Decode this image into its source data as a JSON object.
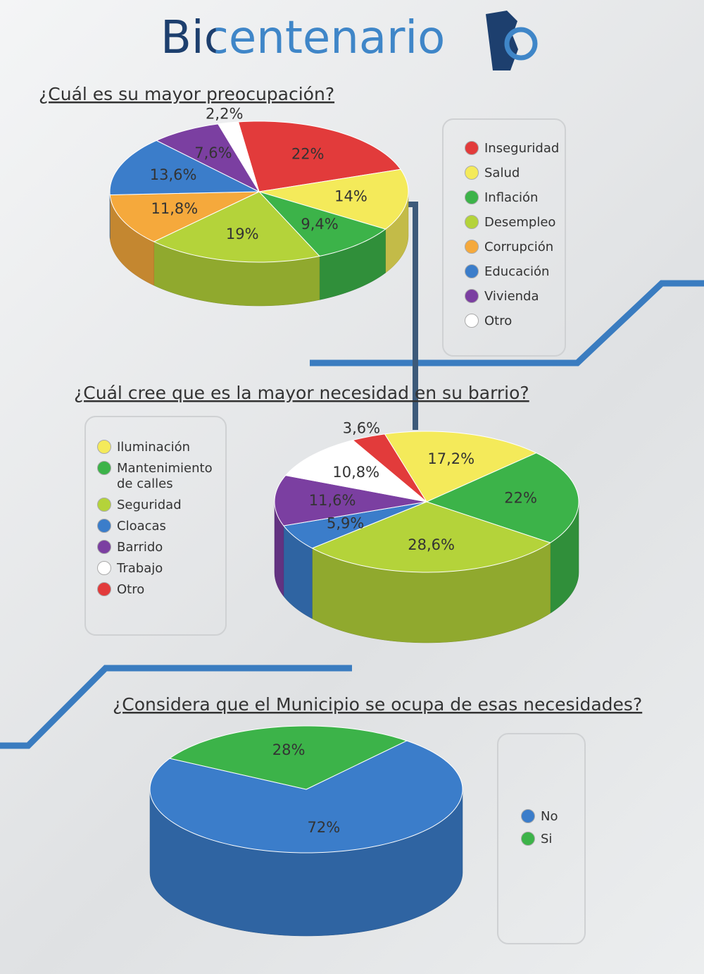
{
  "title": "Bicentenario",
  "chart_data": [
    {
      "type": "pie",
      "title": "¿Cuál es su mayor preocupación?",
      "categories": [
        "Inseguridad",
        "Salud",
        "Inflación",
        "Desempleo",
        "Corrupción",
        "Educación",
        "Vivienda",
        "Otro"
      ],
      "values": [
        22,
        14,
        9.4,
        19,
        11.8,
        13.6,
        7.6,
        2.2
      ],
      "value_labels": [
        "22%",
        "14%",
        "9,4%",
        "19%",
        "11,8%",
        "13,6%",
        "7,6%",
        "2,2%"
      ],
      "colors": [
        "#e23b3b",
        "#f4ea5a",
        "#3cb349",
        "#b4d33a",
        "#f5a93c",
        "#3b7dca",
        "#7b3fa1",
        "#ffffff"
      ],
      "legend": "right"
    },
    {
      "type": "pie",
      "title": "¿Cuál cree que es la mayor necesidad en su barrio?",
      "categories": [
        "Iluminación",
        "Mantenimiento de calles",
        "Seguridad",
        "Cloacas",
        "Barrido",
        "Trabajo",
        "Otro"
      ],
      "values": [
        17.2,
        22,
        28.6,
        5.9,
        11.6,
        10.8,
        3.6
      ],
      "value_labels": [
        "17,2%",
        "22%",
        "28,6%",
        "5,9%",
        "11,6%",
        "10,8%",
        "3,6%"
      ],
      "colors": [
        "#f4ea5a",
        "#3cb349",
        "#b4d33a",
        "#3b7dca",
        "#7b3fa1",
        "#ffffff",
        "#e23b3b"
      ],
      "legend": "left"
    },
    {
      "type": "pie",
      "title": "¿Considera que el Municipio se ocupa de esas necesidades?",
      "categories": [
        "No",
        "Si"
      ],
      "values": [
        72,
        28
      ],
      "value_labels": [
        "72%",
        "28%"
      ],
      "colors": [
        "#3b7dca",
        "#3cb349"
      ],
      "legend": "right"
    }
  ]
}
